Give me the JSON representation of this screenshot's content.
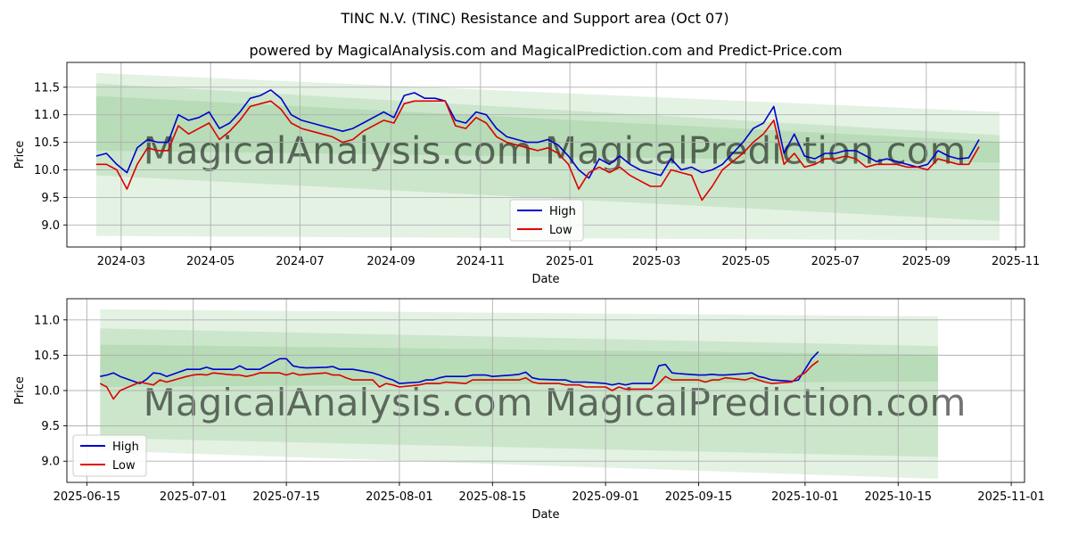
{
  "title": "TINC N.V. (TINC) Resistance and Support area (Oct 07)",
  "subtitle": "powered by MagicalAnalysis.com and MagicalPrediction.com and Predict-Price.com",
  "watermark": "MagicalAnalysis.com   MagicalPrediction.com",
  "colors": {
    "high": "#0000cc",
    "low": "#dd0000",
    "band": "#2e9a2e",
    "grid": "#b0b0b0"
  },
  "chart_data": [
    {
      "type": "line",
      "xlabel": "Date",
      "ylabel": "Price",
      "xlim": [
        "2024-01-24",
        "2025-11-07"
      ],
      "ylim": [
        8.6,
        11.95
      ],
      "x_ticks": [
        {
          "date": "2024-03-01",
          "label": "2024-03"
        },
        {
          "date": "2024-05-01",
          "label": "2024-05"
        },
        {
          "date": "2024-07-01",
          "label": "2024-07"
        },
        {
          "date": "2024-09-01",
          "label": "2024-09"
        },
        {
          "date": "2024-11-01",
          "label": "2024-11"
        },
        {
          "date": "2025-01-01",
          "label": "2025-01"
        },
        {
          "date": "2025-03-01",
          "label": "2025-03"
        },
        {
          "date": "2025-05-01",
          "label": "2025-05"
        },
        {
          "date": "2025-07-01",
          "label": "2025-07"
        },
        {
          "date": "2025-09-01",
          "label": "2025-09"
        },
        {
          "date": "2025-11-01",
          "label": "2025-11"
        }
      ],
      "y_ticks": [
        9.0,
        9.5,
        10.0,
        10.5,
        11.0,
        11.5
      ],
      "y_tick_labels": [
        "9.0",
        "9.5",
        "10.0",
        "10.5",
        "11.0",
        "11.5"
      ],
      "grid": true,
      "legend": {
        "position": "bottom-center",
        "entries": [
          "High",
          "Low"
        ]
      },
      "bands": [
        {
          "start": "2024-02-13",
          "end": "2025-10-21",
          "top": [
            11.76,
            11.05
          ],
          "bottom": [
            8.8,
            8.72
          ]
        },
        {
          "start": "2024-02-13",
          "end": "2025-10-21",
          "top": [
            11.57,
            10.63
          ],
          "bottom": [
            9.9,
            9.07
          ]
        },
        {
          "start": "2024-02-13",
          "end": "2025-10-21",
          "top": [
            11.34,
            10.51
          ],
          "bottom": [
            10.35,
            10.13
          ]
        }
      ],
      "series": [
        {
          "name": "High",
          "x": [
            "2024-02-13",
            "2024-02-20",
            "2024-02-27",
            "2024-03-05",
            "2024-03-12",
            "2024-03-19",
            "2024-03-26",
            "2024-04-02",
            "2024-04-09",
            "2024-04-16",
            "2024-04-23",
            "2024-04-30",
            "2024-05-07",
            "2024-05-14",
            "2024-05-21",
            "2024-05-28",
            "2024-06-04",
            "2024-06-11",
            "2024-06-18",
            "2024-06-25",
            "2024-07-02",
            "2024-07-09",
            "2024-07-16",
            "2024-07-23",
            "2024-07-30",
            "2024-08-06",
            "2024-08-13",
            "2024-08-20",
            "2024-08-27",
            "2024-09-03",
            "2024-09-10",
            "2024-09-17",
            "2024-09-24",
            "2024-10-01",
            "2024-10-08",
            "2024-10-15",
            "2024-10-22",
            "2024-10-29",
            "2024-11-05",
            "2024-11-12",
            "2024-11-19",
            "2024-11-26",
            "2024-12-03",
            "2024-12-10",
            "2024-12-17",
            "2024-12-24",
            "2024-12-31",
            "2025-01-07",
            "2025-01-14",
            "2025-01-21",
            "2025-01-28",
            "2025-02-04",
            "2025-02-11",
            "2025-02-18",
            "2025-02-25",
            "2025-03-04",
            "2025-03-11",
            "2025-03-18",
            "2025-03-25",
            "2025-04-01",
            "2025-04-08",
            "2025-04-15",
            "2025-04-22",
            "2025-04-29",
            "2025-05-06",
            "2025-05-13",
            "2025-05-20",
            "2025-05-27",
            "2025-06-03",
            "2025-06-10",
            "2025-06-17",
            "2025-06-24",
            "2025-07-01",
            "2025-07-08",
            "2025-07-15",
            "2025-07-22",
            "2025-07-29",
            "2025-08-05",
            "2025-08-12",
            "2025-08-19",
            "2025-08-26",
            "2025-09-02",
            "2025-09-09",
            "2025-09-16",
            "2025-09-23",
            "2025-09-30",
            "2025-10-07"
          ],
          "values": [
            10.25,
            10.3,
            10.1,
            9.95,
            10.4,
            10.55,
            10.5,
            10.5,
            11.0,
            10.9,
            10.95,
            11.05,
            10.75,
            10.85,
            11.05,
            11.3,
            11.35,
            11.45,
            11.3,
            11.0,
            10.9,
            10.85,
            10.8,
            10.75,
            10.7,
            10.75,
            10.85,
            10.95,
            11.05,
            10.95,
            11.35,
            11.4,
            11.3,
            11.3,
            11.25,
            10.9,
            10.85,
            11.05,
            11.0,
            10.75,
            10.6,
            10.55,
            10.5,
            10.5,
            10.55,
            10.45,
            10.25,
            10.0,
            9.85,
            10.2,
            10.1,
            10.25,
            10.1,
            10.0,
            9.95,
            9.9,
            10.2,
            10.0,
            10.05,
            9.95,
            10.0,
            10.1,
            10.3,
            10.5,
            10.75,
            10.85,
            11.15,
            10.3,
            10.65,
            10.25,
            10.2,
            10.3,
            10.3,
            10.35,
            10.35,
            10.25,
            10.15,
            10.2,
            10.15,
            10.1,
            10.05,
            10.1,
            10.35,
            10.25,
            10.2,
            10.22,
            10.55
          ]
        },
        {
          "name": "Low",
          "x": [
            "2024-02-13",
            "2024-02-20",
            "2024-02-27",
            "2024-03-05",
            "2024-03-12",
            "2024-03-19",
            "2024-03-26",
            "2024-04-02",
            "2024-04-09",
            "2024-04-16",
            "2024-04-23",
            "2024-04-30",
            "2024-05-07",
            "2024-05-14",
            "2024-05-21",
            "2024-05-28",
            "2024-06-04",
            "2024-06-11",
            "2024-06-18",
            "2024-06-25",
            "2024-07-02",
            "2024-07-09",
            "2024-07-16",
            "2024-07-23",
            "2024-07-30",
            "2024-08-06",
            "2024-08-13",
            "2024-08-20",
            "2024-08-27",
            "2024-09-03",
            "2024-09-10",
            "2024-09-17",
            "2024-09-24",
            "2024-10-01",
            "2024-10-08",
            "2024-10-15",
            "2024-10-22",
            "2024-10-29",
            "2024-11-05",
            "2024-11-12",
            "2024-11-19",
            "2024-11-26",
            "2024-12-03",
            "2024-12-10",
            "2024-12-17",
            "2024-12-24",
            "2024-12-31",
            "2025-01-07",
            "2025-01-14",
            "2025-01-21",
            "2025-01-28",
            "2025-02-04",
            "2025-02-11",
            "2025-02-18",
            "2025-02-25",
            "2025-03-04",
            "2025-03-11",
            "2025-03-18",
            "2025-03-25",
            "2025-04-01",
            "2025-04-08",
            "2025-04-15",
            "2025-04-22",
            "2025-04-29",
            "2025-05-06",
            "2025-05-13",
            "2025-05-20",
            "2025-05-27",
            "2025-06-03",
            "2025-06-10",
            "2025-06-17",
            "2025-06-24",
            "2025-07-01",
            "2025-07-08",
            "2025-07-15",
            "2025-07-22",
            "2025-07-29",
            "2025-08-05",
            "2025-08-12",
            "2025-08-19",
            "2025-08-26",
            "2025-09-02",
            "2025-09-09",
            "2025-09-16",
            "2025-09-23",
            "2025-09-30",
            "2025-10-07"
          ],
          "values": [
            10.1,
            10.1,
            10.0,
            9.65,
            10.1,
            10.4,
            10.35,
            10.35,
            10.8,
            10.65,
            10.75,
            10.85,
            10.55,
            10.7,
            10.9,
            11.15,
            11.2,
            11.25,
            11.1,
            10.85,
            10.75,
            10.7,
            10.65,
            10.6,
            10.5,
            10.55,
            10.7,
            10.8,
            10.9,
            10.85,
            11.2,
            11.25,
            11.25,
            11.25,
            11.25,
            10.8,
            10.75,
            10.95,
            10.85,
            10.6,
            10.5,
            10.45,
            10.4,
            10.35,
            10.4,
            10.3,
            10.1,
            9.65,
            9.95,
            10.05,
            9.95,
            10.05,
            9.9,
            9.8,
            9.7,
            9.7,
            10.0,
            9.95,
            9.9,
            9.45,
            9.7,
            10.0,
            10.15,
            10.3,
            10.5,
            10.65,
            10.9,
            10.1,
            10.3,
            10.05,
            10.1,
            10.2,
            10.2,
            10.25,
            10.2,
            10.05,
            10.1,
            10.1,
            10.1,
            10.05,
            10.05,
            10.0,
            10.2,
            10.15,
            10.1,
            10.1,
            10.42
          ]
        }
      ]
    },
    {
      "type": "line",
      "xlabel": "Date",
      "ylabel": "Price",
      "xlim": [
        "2025-06-12",
        "2025-11-03"
      ],
      "ylim": [
        8.7,
        11.3
      ],
      "x_ticks": [
        {
          "date": "2025-06-15",
          "label": "2025-06-15"
        },
        {
          "date": "2025-07-01",
          "label": "2025-07-01"
        },
        {
          "date": "2025-07-15",
          "label": "2025-07-15"
        },
        {
          "date": "2025-08-01",
          "label": "2025-08-01"
        },
        {
          "date": "2025-08-15",
          "label": "2025-08-15"
        },
        {
          "date": "2025-09-01",
          "label": "2025-09-01"
        },
        {
          "date": "2025-09-15",
          "label": "2025-09-15"
        },
        {
          "date": "2025-10-01",
          "label": "2025-10-01"
        },
        {
          "date": "2025-10-15",
          "label": "2025-10-15"
        },
        {
          "date": "2025-11-01",
          "label": "2025-11-01"
        }
      ],
      "y_ticks": [
        9.0,
        9.5,
        10.0,
        10.5,
        11.0
      ],
      "y_tick_labels": [
        "9.0",
        "9.5",
        "10.0",
        "10.5",
        "11.0"
      ],
      "grid": true,
      "legend": {
        "position": "bottom-left",
        "entries": [
          "High",
          "Low"
        ]
      },
      "bands": [
        {
          "start": "2025-06-17",
          "end": "2025-10-21",
          "top": [
            11.15,
            11.05
          ],
          "bottom": [
            9.15,
            8.75
          ]
        },
        {
          "start": "2025-06-17",
          "end": "2025-10-21",
          "top": [
            10.88,
            10.63
          ],
          "bottom": [
            9.33,
            9.06
          ]
        },
        {
          "start": "2025-06-17",
          "end": "2025-10-21",
          "top": [
            10.65,
            10.51
          ],
          "bottom": [
            10.05,
            10.13
          ]
        }
      ],
      "series": [
        {
          "name": "High",
          "x": [
            "2025-06-17",
            "2025-06-18",
            "2025-06-19",
            "2025-06-20",
            "2025-06-23",
            "2025-06-24",
            "2025-06-25",
            "2025-06-26",
            "2025-06-27",
            "2025-06-30",
            "2025-07-01",
            "2025-07-02",
            "2025-07-03",
            "2025-07-04",
            "2025-07-07",
            "2025-07-08",
            "2025-07-09",
            "2025-07-10",
            "2025-07-11",
            "2025-07-14",
            "2025-07-15",
            "2025-07-16",
            "2025-07-17",
            "2025-07-18",
            "2025-07-21",
            "2025-07-22",
            "2025-07-23",
            "2025-07-24",
            "2025-07-25",
            "2025-07-28",
            "2025-07-29",
            "2025-07-30",
            "2025-07-31",
            "2025-08-01",
            "2025-08-04",
            "2025-08-05",
            "2025-08-06",
            "2025-08-07",
            "2025-08-08",
            "2025-08-11",
            "2025-08-12",
            "2025-08-13",
            "2025-08-14",
            "2025-08-15",
            "2025-08-18",
            "2025-08-19",
            "2025-08-20",
            "2025-08-21",
            "2025-08-22",
            "2025-08-25",
            "2025-08-26",
            "2025-08-27",
            "2025-08-28",
            "2025-08-29",
            "2025-09-01",
            "2025-09-02",
            "2025-09-03",
            "2025-09-04",
            "2025-09-05",
            "2025-09-08",
            "2025-09-09",
            "2025-09-10",
            "2025-09-11",
            "2025-09-12",
            "2025-09-15",
            "2025-09-16",
            "2025-09-17",
            "2025-09-18",
            "2025-09-19",
            "2025-09-22",
            "2025-09-23",
            "2025-09-24",
            "2025-09-25",
            "2025-09-26",
            "2025-09-29",
            "2025-09-30",
            "2025-10-01",
            "2025-10-02",
            "2025-10-03"
          ],
          "values": [
            10.2,
            10.22,
            10.25,
            10.2,
            10.1,
            10.16,
            10.25,
            10.24,
            10.2,
            10.3,
            10.3,
            10.3,
            10.33,
            10.3,
            10.3,
            10.35,
            10.3,
            10.3,
            10.3,
            10.45,
            10.45,
            10.35,
            10.33,
            10.32,
            10.33,
            10.34,
            10.3,
            10.3,
            10.3,
            10.25,
            10.22,
            10.18,
            10.15,
            10.1,
            10.12,
            10.15,
            10.15,
            10.18,
            10.2,
            10.2,
            10.22,
            10.22,
            10.22,
            10.2,
            10.22,
            10.23,
            10.26,
            10.18,
            10.16,
            10.15,
            10.15,
            10.12,
            10.12,
            10.12,
            10.1,
            10.08,
            10.1,
            10.08,
            10.1,
            10.1,
            10.35,
            10.37,
            10.25,
            10.24,
            10.22,
            10.22,
            10.23,
            10.22,
            10.22,
            10.24,
            10.25,
            10.2,
            10.18,
            10.15,
            10.13,
            10.15,
            10.3,
            10.45,
            10.55
          ]
        },
        {
          "name": "Low",
          "x": [
            "2025-06-17",
            "2025-06-18",
            "2025-06-19",
            "2025-06-20",
            "2025-06-23",
            "2025-06-24",
            "2025-06-25",
            "2025-06-26",
            "2025-06-27",
            "2025-06-30",
            "2025-07-01",
            "2025-07-02",
            "2025-07-03",
            "2025-07-04",
            "2025-07-07",
            "2025-07-08",
            "2025-07-09",
            "2025-07-10",
            "2025-07-11",
            "2025-07-14",
            "2025-07-15",
            "2025-07-16",
            "2025-07-17",
            "2025-07-18",
            "2025-07-21",
            "2025-07-22",
            "2025-07-23",
            "2025-07-24",
            "2025-07-25",
            "2025-07-28",
            "2025-07-29",
            "2025-07-30",
            "2025-07-31",
            "2025-08-01",
            "2025-08-04",
            "2025-08-05",
            "2025-08-06",
            "2025-08-07",
            "2025-08-08",
            "2025-08-11",
            "2025-08-12",
            "2025-08-13",
            "2025-08-14",
            "2025-08-15",
            "2025-08-18",
            "2025-08-19",
            "2025-08-20",
            "2025-08-21",
            "2025-08-22",
            "2025-08-25",
            "2025-08-26",
            "2025-08-27",
            "2025-08-28",
            "2025-08-29",
            "2025-09-01",
            "2025-09-02",
            "2025-09-03",
            "2025-09-04",
            "2025-09-05",
            "2025-09-08",
            "2025-09-09",
            "2025-09-10",
            "2025-09-11",
            "2025-09-12",
            "2025-09-15",
            "2025-09-16",
            "2025-09-17",
            "2025-09-18",
            "2025-09-19",
            "2025-09-22",
            "2025-09-23",
            "2025-09-24",
            "2025-09-25",
            "2025-09-26",
            "2025-09-29",
            "2025-09-30",
            "2025-10-01",
            "2025-10-02",
            "2025-10-03"
          ],
          "values": [
            10.1,
            10.05,
            9.88,
            10.0,
            10.12,
            10.1,
            10.08,
            10.15,
            10.12,
            10.2,
            10.22,
            10.23,
            10.22,
            10.25,
            10.22,
            10.22,
            10.2,
            10.22,
            10.25,
            10.25,
            10.22,
            10.25,
            10.22,
            10.23,
            10.25,
            10.22,
            10.22,
            10.18,
            10.15,
            10.15,
            10.05,
            10.1,
            10.08,
            10.05,
            10.08,
            10.1,
            10.1,
            10.1,
            10.12,
            10.1,
            10.15,
            10.15,
            10.15,
            10.15,
            10.15,
            10.15,
            10.18,
            10.12,
            10.1,
            10.1,
            10.08,
            10.08,
            10.08,
            10.05,
            10.05,
            10.0,
            10.05,
            10.02,
            10.02,
            10.02,
            10.1,
            10.2,
            10.15,
            10.15,
            10.15,
            10.12,
            10.15,
            10.15,
            10.18,
            10.15,
            10.18,
            10.15,
            10.12,
            10.1,
            10.12,
            10.2,
            10.25,
            10.35,
            10.42
          ]
        }
      ]
    }
  ]
}
